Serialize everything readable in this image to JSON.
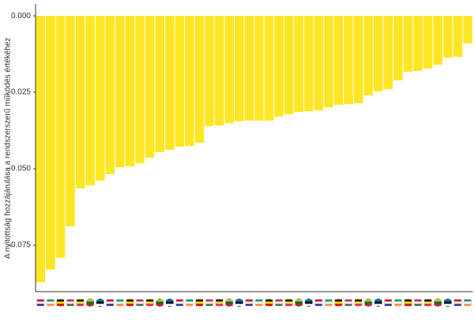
{
  "chart_data": {
    "type": "bar",
    "y_label": "A nyitottság hozzájárulása a rendszerszerű működés értékéhez",
    "categories": [
      null,
      null,
      null,
      null,
      null,
      null,
      null,
      null,
      null,
      null,
      null,
      null,
      null,
      null,
      null,
      null,
      null,
      null,
      null,
      null,
      null,
      null,
      null,
      null,
      null,
      null,
      null,
      null,
      null,
      null,
      null,
      null,
      null,
      null,
      null,
      null,
      null,
      null,
      null,
      null,
      null,
      null,
      null,
      null
    ],
    "values": [
      -0.0871,
      -0.083,
      -0.0791,
      -0.0688,
      -0.0564,
      -0.0554,
      -0.0539,
      -0.0518,
      -0.0495,
      -0.0492,
      -0.0482,
      -0.0464,
      -0.0446,
      -0.0438,
      -0.0428,
      -0.0425,
      -0.0415,
      -0.0361,
      -0.0358,
      -0.0351,
      -0.0345,
      -0.0343,
      -0.0343,
      -0.0343,
      -0.033,
      -0.0322,
      -0.0314,
      -0.0312,
      -0.0309,
      -0.0299,
      -0.0291,
      -0.0289,
      -0.0286,
      -0.026,
      -0.0247,
      -0.024,
      -0.0211,
      -0.0183,
      -0.018,
      -0.0173,
      -0.016,
      -0.0137,
      -0.0134,
      -0.009
    ],
    "color": "#fde725",
    "ylim": [
      -0.0902,
      0.0039
    ],
    "yticks": [
      {
        "value": 0,
        "label": "0.000"
      },
      {
        "value": -0.025,
        "label": "-0.025"
      },
      {
        "value": -0.05,
        "label": "-0.050"
      },
      {
        "value": -0.075,
        "label": "-0.075"
      }
    ],
    "grid": false
  }
}
